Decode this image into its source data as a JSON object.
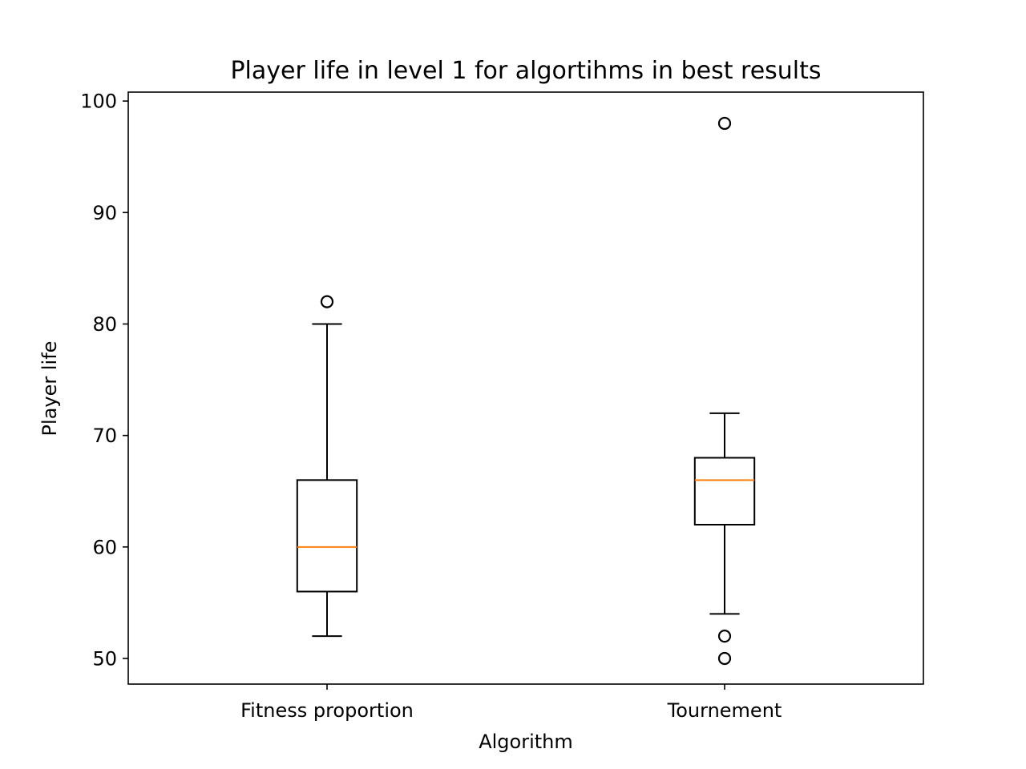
{
  "chart_data": {
    "type": "box",
    "title": "Player life in level 1 for algortihms in best results",
    "xlabel": "Algorithm",
    "ylabel": "Player life",
    "ylim": [
      47.7,
      100.8
    ],
    "yticks": [
      50,
      60,
      70,
      80,
      90,
      100
    ],
    "grid": false,
    "categories": [
      "Fitness proportion",
      "Tournement"
    ],
    "boxes": [
      {
        "category": "Fitness proportion",
        "whisker_low": 52,
        "q1": 56,
        "median": 60,
        "q3": 66,
        "whisker_high": 80,
        "outliers": [
          82
        ]
      },
      {
        "category": "Tournement",
        "whisker_low": 54,
        "q1": 62,
        "median": 66,
        "q3": 68,
        "whisker_high": 72,
        "outliers": [
          98,
          52,
          50
        ]
      }
    ],
    "colors": {
      "box": "#000000",
      "median": "#ff7f0e",
      "background": "#ffffff"
    }
  }
}
